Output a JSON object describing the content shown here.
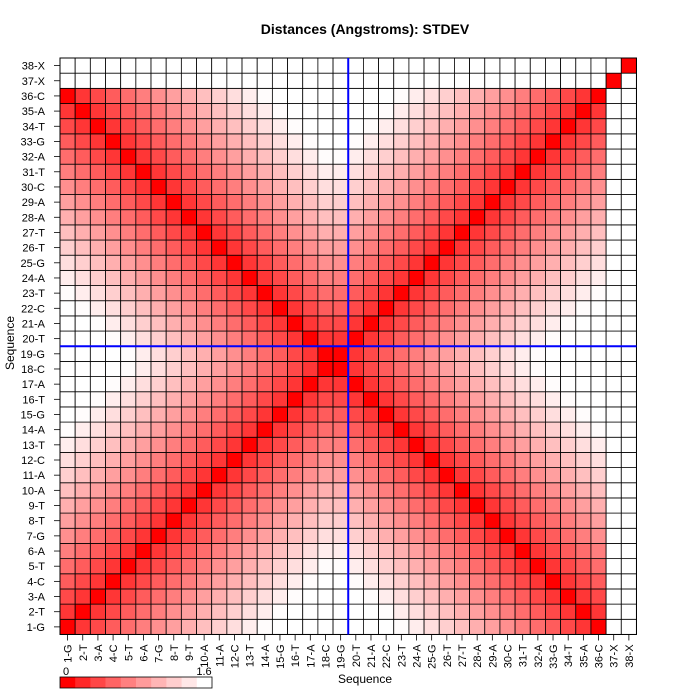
{
  "chart_data": {
    "type": "heatmap",
    "title": "Distances (Angstroms):  STDEV",
    "xlabel": "Sequence",
    "ylabel": "Sequence",
    "labels": [
      "1-G",
      "2-T",
      "3-A",
      "4-C",
      "5-T",
      "6-A",
      "7-G",
      "8-T",
      "9-T",
      "10-A",
      "11-A",
      "12-C",
      "13-T",
      "14-A",
      "15-G",
      "16-T",
      "17-A",
      "18-C",
      "19-G",
      "20-T",
      "21-A",
      "22-C",
      "23-T",
      "24-A",
      "25-G",
      "26-T",
      "27-T",
      "28-A",
      "29-A",
      "30-C",
      "31-T",
      "32-A",
      "33-G",
      "34-T",
      "35-A",
      "36-C",
      "37-X",
      "38-X"
    ],
    "color_scale": {
      "min": 0,
      "max": 1.6,
      "min_label": "0",
      "max_label": "1.6",
      "low_color": "#ff0000",
      "high_color": "#ffffff"
    },
    "no_data_indices": [
      36,
      37
    ],
    "value_model": "stdev(i,j) = 0 on the diagonal (i=j) and along the anti-diagonal (i+j = 37 in 0-based index); grows with distance from either diagonal, approaching 1.6 at the far corners of each quadrant",
    "crosshair": {
      "x_between": [
        "19-G",
        "20-T"
      ],
      "y_between": [
        "19-G",
        "20-T"
      ],
      "color": "#0000ff"
    },
    "grid": true
  }
}
